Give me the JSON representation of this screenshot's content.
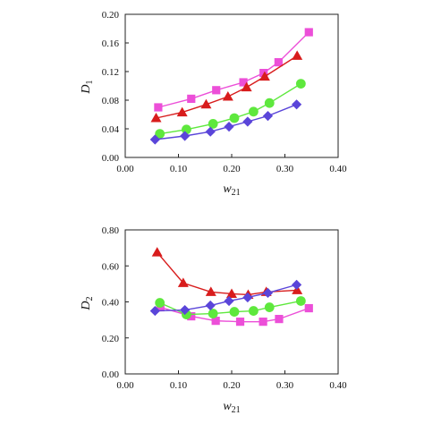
{
  "chart_data": [
    {
      "type": "line",
      "ylabel": "D",
      "ylabel_sub": "1",
      "xlabel": "w",
      "xlabel_sub": "21",
      "xlim": [
        0.0,
        0.4
      ],
      "ylim": [
        0.0,
        0.2
      ],
      "xticks": [
        "0.00",
        "0.10",
        "0.20",
        "0.30",
        "0.40"
      ],
      "yticks": [
        "0.00",
        "0.04",
        "0.08",
        "0.12",
        "0.16",
        "0.20"
      ],
      "xtick_values": [
        0.0,
        0.1,
        0.2,
        0.3,
        0.4
      ],
      "ytick_values": [
        0.0,
        0.04,
        0.08,
        0.12,
        0.16,
        0.2
      ],
      "grid": false,
      "series": [
        {
          "color": "#ec4fd8",
          "marker": "square",
          "x": [
            0.062,
            0.124,
            0.171,
            0.222,
            0.26,
            0.288,
            0.345
          ],
          "y": [
            0.07,
            0.082,
            0.094,
            0.105,
            0.118,
            0.133,
            0.175
          ]
        },
        {
          "color": "#d81c1c",
          "marker": "triangle",
          "x": [
            0.058,
            0.107,
            0.152,
            0.193,
            0.228,
            0.262,
            0.323
          ],
          "y": [
            0.055,
            0.063,
            0.074,
            0.085,
            0.098,
            0.113,
            0.142
          ]
        },
        {
          "color": "#5ee83d",
          "marker": "circle",
          "x": [
            0.065,
            0.115,
            0.165,
            0.205,
            0.241,
            0.271,
            0.33
          ],
          "y": [
            0.033,
            0.039,
            0.047,
            0.055,
            0.064,
            0.076,
            0.103
          ]
        },
        {
          "color": "#5a45d9",
          "marker": "diamond",
          "x": [
            0.056,
            0.112,
            0.16,
            0.195,
            0.23,
            0.268,
            0.322
          ],
          "y": [
            0.025,
            0.03,
            0.036,
            0.043,
            0.05,
            0.058,
            0.074
          ]
        }
      ]
    },
    {
      "type": "line",
      "ylabel": "D",
      "ylabel_sub": "2",
      "xlabel": "w",
      "xlabel_sub": "21",
      "xlim": [
        0.0,
        0.4
      ],
      "ylim": [
        0.0,
        0.8
      ],
      "xticks": [
        "0.00",
        "0.10",
        "0.20",
        "0.30",
        "0.40"
      ],
      "yticks": [
        "0.00",
        "0.20",
        "0.40",
        "0.60",
        "0.80"
      ],
      "xtick_values": [
        0.0,
        0.1,
        0.2,
        0.3,
        0.4
      ],
      "ytick_values": [
        0.0,
        0.2,
        0.4,
        0.6,
        0.8
      ],
      "grid": false,
      "series": [
        {
          "color": "#ec4fd8",
          "marker": "square",
          "x": [
            0.066,
            0.124,
            0.17,
            0.216,
            0.259,
            0.289,
            0.345
          ],
          "y": [
            0.37,
            0.32,
            0.295,
            0.29,
            0.29,
            0.305,
            0.365
          ]
        },
        {
          "color": "#d81c1c",
          "marker": "triangle",
          "x": [
            0.06,
            0.109,
            0.161,
            0.2,
            0.231,
            0.265,
            0.323
          ],
          "y": [
            0.675,
            0.505,
            0.455,
            0.445,
            0.44,
            0.455,
            0.465
          ]
        },
        {
          "color": "#5ee83d",
          "marker": "circle",
          "x": [
            0.065,
            0.115,
            0.165,
            0.205,
            0.241,
            0.271,
            0.33
          ],
          "y": [
            0.395,
            0.33,
            0.335,
            0.345,
            0.35,
            0.37,
            0.405
          ]
        },
        {
          "color": "#5a45d9",
          "marker": "diamond",
          "x": [
            0.056,
            0.112,
            0.16,
            0.195,
            0.23,
            0.268,
            0.322
          ],
          "y": [
            0.35,
            0.355,
            0.38,
            0.405,
            0.425,
            0.45,
            0.495
          ]
        }
      ]
    }
  ]
}
